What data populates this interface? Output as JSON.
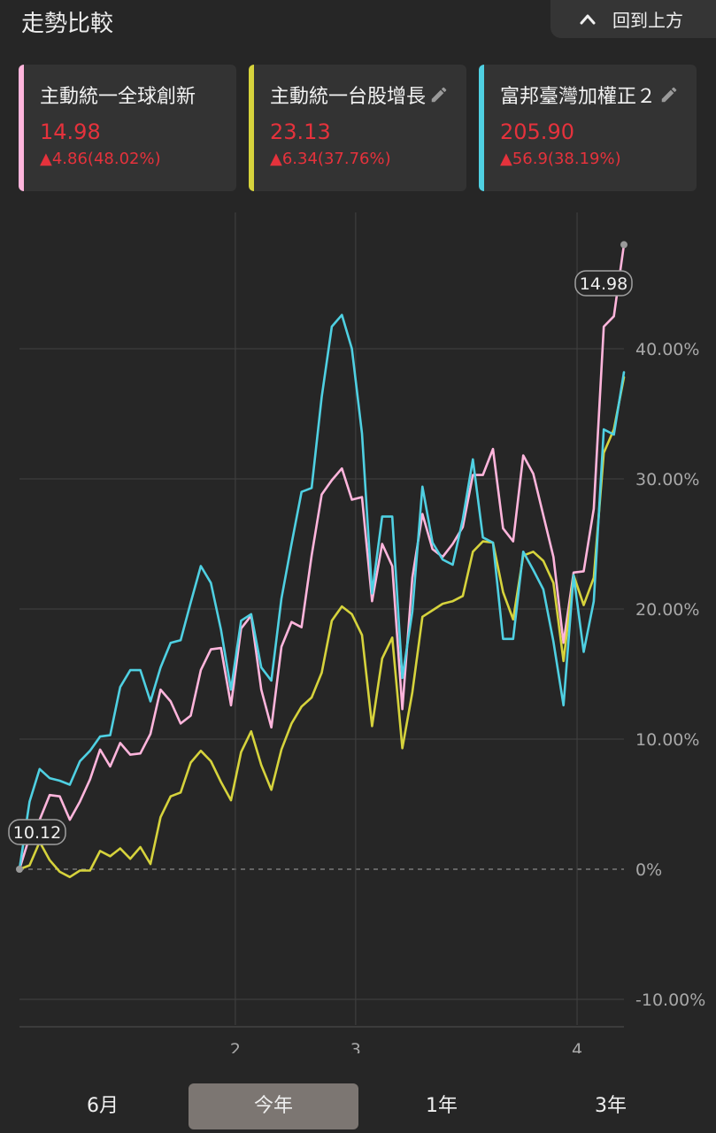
{
  "header": {
    "title": "走勢比較",
    "back_to_top": "回到上方"
  },
  "cards": [
    {
      "name": "主動統一全球創新",
      "price": "14.98",
      "change": "▲4.86(48.02%)",
      "color": "#ffb5dc",
      "editable": false
    },
    {
      "name": "主動統一台股增長",
      "price": "23.13",
      "change": "▲6.34(37.76%)",
      "color": "#d6d33c",
      "editable": true
    },
    {
      "name": "富邦臺灣加權正２",
      "price": "205.90",
      "change": "▲56.9(38.19%)",
      "color": "#4fd0e2",
      "editable": true
    }
  ],
  "tabs": [
    {
      "label": "6月",
      "active": false
    },
    {
      "label": "今年",
      "active": true
    },
    {
      "label": "1年",
      "active": false
    },
    {
      "label": "3年",
      "active": false
    }
  ],
  "chart_data": {
    "type": "line",
    "ylim": [
      -12,
      48
    ],
    "y_ticks": [
      {
        "value": 40,
        "label": "40.00%"
      },
      {
        "value": 30,
        "label": "30.00%"
      },
      {
        "value": 20,
        "label": "20.00%"
      },
      {
        "value": 10,
        "label": "10.00%"
      },
      {
        "value": 0,
        "label": "0%"
      },
      {
        "value": -10,
        "label": "-10.00%"
      }
    ],
    "x_range": [
      0,
      49
    ],
    "x_ticks": [
      {
        "value": 17.5,
        "label": "2"
      },
      {
        "value": 27.25,
        "label": "3"
      },
      {
        "value": 45.2,
        "label": "4"
      }
    ],
    "start_label": "10.12",
    "end_label": "14.98",
    "series": [
      {
        "name": "主動統一全球創新",
        "color": "#ffb5dc",
        "values": [
          0,
          2.5,
          3.8,
          5.7,
          5.6,
          3.8,
          5.2,
          6.9,
          9.2,
          7.9,
          9.7,
          8.8,
          8.9,
          10.4,
          13.8,
          12.9,
          11.2,
          11.8,
          15.3,
          16.9,
          17.0,
          12.6,
          18.5,
          19.5,
          13.8,
          10.9,
          17.1,
          19.0,
          18.6,
          24.1,
          28.8,
          29.9,
          30.8,
          28.4,
          28.6,
          20.6,
          25.0,
          23.3,
          12.3,
          22.4,
          27.3,
          24.6,
          24.0,
          25.0,
          26.3,
          30.3,
          30.3,
          32.3,
          26.2,
          25.2,
          31.8,
          30.4,
          27.2,
          24.0,
          17.4,
          22.8,
          22.9,
          27.7,
          41.7,
          42.5,
          48.0
        ]
      },
      {
        "name": "主動統一台股增長",
        "color": "#d6d33c",
        "values": [
          0,
          0.3,
          2.1,
          0.7,
          -0.2,
          -0.6,
          -0.1,
          -0.1,
          1.4,
          1.0,
          1.6,
          0.8,
          1.7,
          0.4,
          4.0,
          5.6,
          5.9,
          8.2,
          9.1,
          8.3,
          6.7,
          5.3,
          9.0,
          10.6,
          8.0,
          6.1,
          9.2,
          11.2,
          12.5,
          13.2,
          15.1,
          19.1,
          20.2,
          19.6,
          18.0,
          11.0,
          16.2,
          17.8,
          9.3,
          13.6,
          19.4,
          19.9,
          20.4,
          20.6,
          21.0,
          24.4,
          25.2,
          25.1,
          21.3,
          19.2,
          24.1,
          24.4,
          23.7,
          22.0,
          16.0,
          22.6,
          20.3,
          22.4,
          32.0,
          33.8,
          37.8
        ]
      },
      {
        "name": "富邦臺灣加權正２",
        "color": "#4fd0e2",
        "values": [
          0,
          5.2,
          7.7,
          7.0,
          6.8,
          6.5,
          8.3,
          9.1,
          10.2,
          10.3,
          14.0,
          15.3,
          15.3,
          12.9,
          15.5,
          17.4,
          17.6,
          20.5,
          23.3,
          22.0,
          18.4,
          13.8,
          19.1,
          19.6,
          15.5,
          14.5,
          20.8,
          25.0,
          29.0,
          29.3,
          36.3,
          41.7,
          42.6,
          40.0,
          33.5,
          21.2,
          27.1,
          27.1,
          14.7,
          19.8,
          29.4,
          25.1,
          23.8,
          23.4,
          26.9,
          31.5,
          25.5,
          25.1,
          17.7,
          17.7,
          24.4,
          23.0,
          21.5,
          17.5,
          12.6,
          22.6,
          16.7,
          20.6,
          33.8,
          33.4,
          38.2
        ]
      }
    ]
  }
}
